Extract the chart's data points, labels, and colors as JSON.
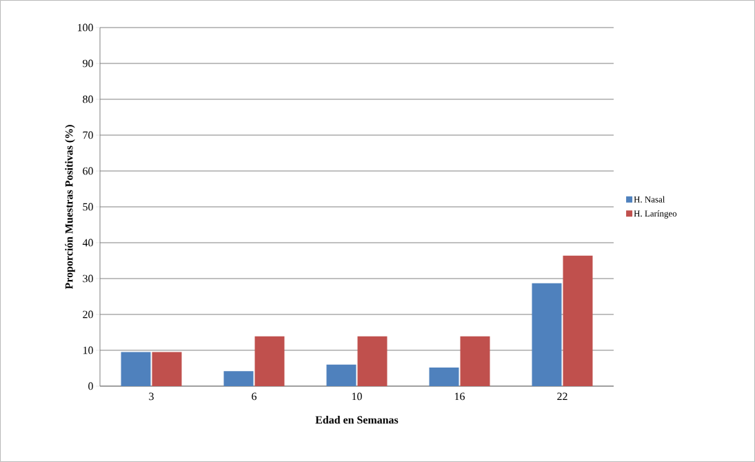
{
  "chart_data": {
    "type": "bar",
    "xlabel": "Edad en Semanas",
    "ylabel": "Proporción Muestras Positivas (%)",
    "categories": [
      "3",
      "6",
      "10",
      "16",
      "22"
    ],
    "series": [
      {
        "name": "H. Nasal",
        "color": "#4f81bd",
        "values": [
          9.5,
          4.2,
          6.0,
          5.2,
          28.7
        ]
      },
      {
        "name": "H. Laríngeo",
        "color": "#c0504d",
        "values": [
          9.5,
          13.9,
          13.9,
          13.9,
          36.4
        ]
      }
    ],
    "ylim": [
      0,
      100
    ],
    "yticks": [
      0,
      10,
      20,
      30,
      40,
      50,
      60,
      70,
      80,
      90,
      100
    ],
    "grid": "y",
    "legend": "right"
  }
}
